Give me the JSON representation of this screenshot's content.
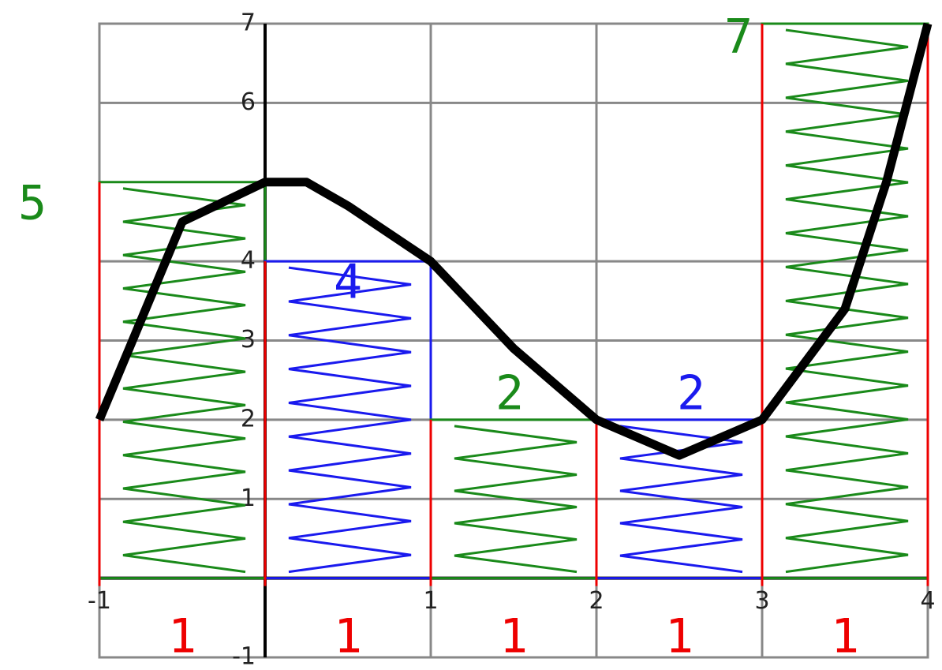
{
  "chart_data": {
    "type": "line",
    "x": [
      -1,
      -0.5,
      0,
      0.25,
      0.5,
      1,
      1.5,
      2,
      2.5,
      3,
      3.5,
      3.75,
      4
    ],
    "values": [
      2,
      4.5,
      5,
      5,
      4.7,
      4,
      2.9,
      2,
      1.55,
      2,
      3.4,
      5,
      7
    ],
    "color": "#000000",
    "xlim": [
      -1,
      4
    ],
    "ylim": [
      -1,
      7
    ],
    "xticks": [
      -1,
      1,
      2,
      3,
      4
    ],
    "yticks": [
      -1,
      1,
      2,
      3,
      4,
      6,
      7
    ],
    "grid": true,
    "rectangles": [
      {
        "height": 5,
        "width": 1,
        "color": "#1a8a1a"
      },
      {
        "height": 4,
        "width": 1,
        "color": "#1a1aee"
      },
      {
        "height": 2,
        "width": 1,
        "color": "#1a8a1a"
      },
      {
        "height": 2,
        "width": 1,
        "color": "#1a1aee"
      },
      {
        "height": 7,
        "width": 1,
        "color": "#1a8a1a"
      }
    ]
  }
}
